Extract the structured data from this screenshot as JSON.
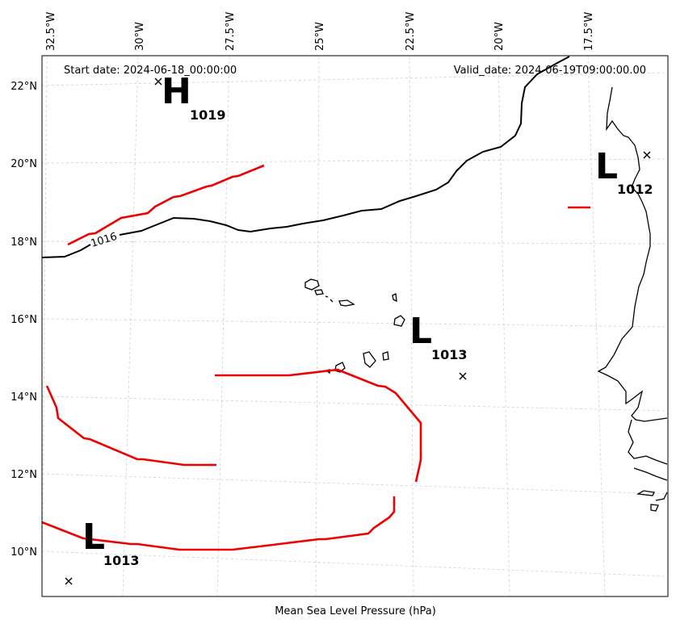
{
  "header": {
    "start_date": "Start date: 2024-06-18_00:00:00",
    "valid_date": "Valid_date: 2024-06-19T09:00:00.00"
  },
  "axis": {
    "xlabel": "Mean Sea Level Pressure (hPa)",
    "lon_labels": [
      "32.5°W",
      "30°W",
      "27.5°W",
      "25°W",
      "22.5°W",
      "20°W",
      "17.5°W"
    ],
    "lat_labels": [
      "22°N",
      "20°N",
      "18°N",
      "16°N",
      "14°N",
      "12°N",
      "10°N"
    ]
  },
  "pressure_centers": [
    {
      "type": "H",
      "value": "1019"
    },
    {
      "type": "L",
      "value": "1012"
    },
    {
      "type": "L",
      "value": "1013"
    },
    {
      "type": "L",
      "value": "1013"
    }
  ],
  "contour_label": "1016",
  "colors": {
    "isobar": "#000000",
    "front": "#ee0000",
    "grid": "#cccccc",
    "coast": "#000000"
  }
}
